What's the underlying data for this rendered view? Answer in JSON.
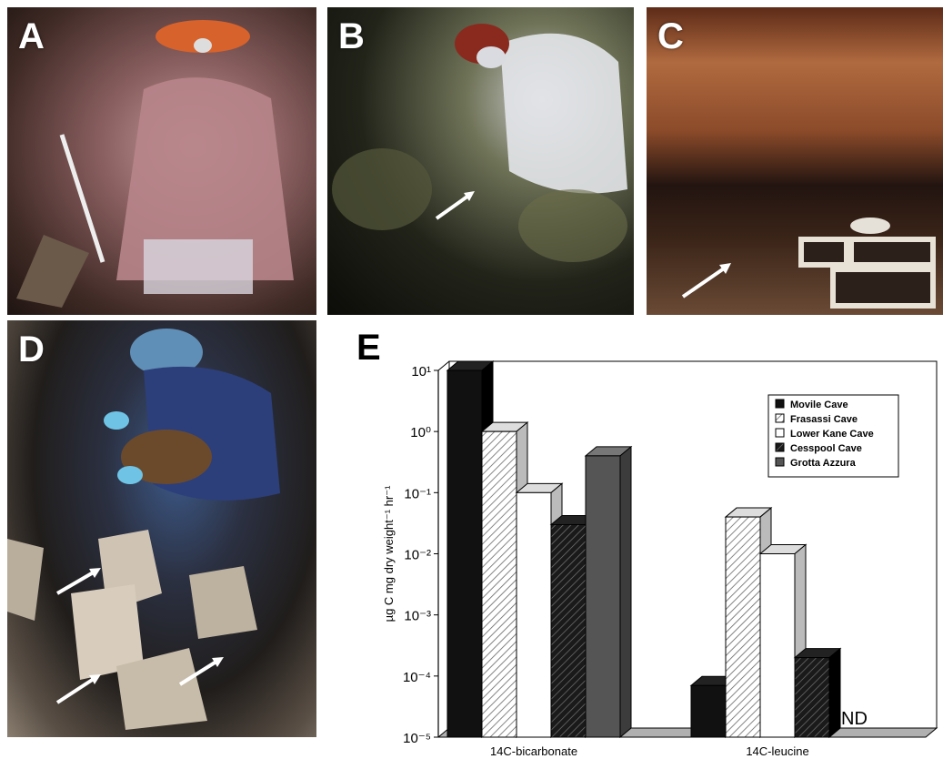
{
  "panels": {
    "a": {
      "label": "A"
    },
    "b": {
      "label": "B"
    },
    "c": {
      "label": "C"
    },
    "d": {
      "label": "D"
    },
    "e": {
      "label": "E"
    }
  },
  "chart_data": {
    "type": "bar",
    "categories": [
      "14C-bicarbonate",
      "14C-leucine"
    ],
    "ylabel": "µg C mg dry weight⁻¹ hr⁻¹",
    "yscale": "log",
    "ylim": [
      1e-05,
      10
    ],
    "ytick_labels": [
      "10¹",
      "10⁰",
      "10⁻¹",
      "10⁻²",
      "10⁻³",
      "10⁻⁴",
      "10⁻⁵"
    ],
    "series": [
      {
        "name": "Movile Cave",
        "values": [
          10,
          7e-05
        ]
      },
      {
        "name": "Frasassi Cave",
        "values": [
          1,
          0.04
        ]
      },
      {
        "name": "Lower Kane Cave",
        "values": [
          0.1,
          0.01
        ]
      },
      {
        "name": "Cesspool Cave",
        "values": [
          0.03,
          0.0002
        ]
      },
      {
        "name": "Grotta Azzura",
        "values": [
          0.4,
          null
        ]
      }
    ],
    "annotations": [
      "ND"
    ],
    "legend": "top-right",
    "colors": {
      "movile": "#111111",
      "frasassi": "#ffffff",
      "lower_kane": "#ffffff",
      "cesspool": "#1a1a1a",
      "grotta": "#555555"
    }
  }
}
